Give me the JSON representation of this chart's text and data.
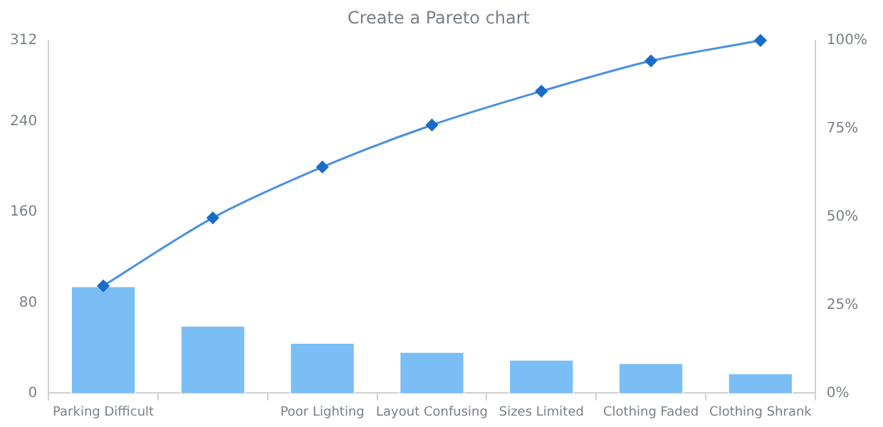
{
  "chart_data": {
    "type": "bar",
    "title": "Create a Pareto chart",
    "categories": [
      "Parking Difficult",
      null,
      "Poor Lighting",
      "Layout Confusing",
      "Sizes Limited",
      "Clothing Faded",
      "Clothing Shrank"
    ],
    "series": [
      {
        "color": "#7abef5",
        "values": [
          95,
          60,
          45,
          37,
          30,
          27,
          18
        ]
      },
      {
        "type": "line",
        "axis": "y2",
        "color": "#4a90e2",
        "values": [
          30.4,
          49.7,
          64.1,
          76,
          85.6,
          94.2,
          100
        ]
      }
    ],
    "ylim": [
      0,
      312
    ],
    "yticks": [
      0,
      80,
      160,
      240,
      312
    ],
    "y2lim": [
      0,
      100
    ],
    "y2ticks": [
      {
        "value": 0,
        "label": "0%"
      },
      {
        "value": 25,
        "label": "25%"
      },
      {
        "value": 50,
        "label": "50%"
      },
      {
        "value": 75,
        "label": "75%"
      },
      {
        "value": 100,
        "label": "100%"
      }
    ],
    "grid": false,
    "legend": false,
    "marker": "diamond",
    "line_style": "solid"
  }
}
